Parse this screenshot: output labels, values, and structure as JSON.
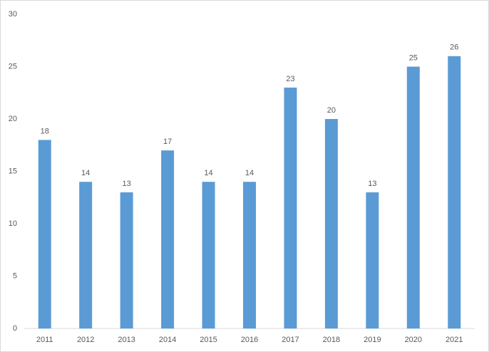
{
  "chart_data": {
    "type": "bar",
    "categories": [
      "2011",
      "2012",
      "2013",
      "2014",
      "2015",
      "2016",
      "2017",
      "2018",
      "2019",
      "2020",
      "2021"
    ],
    "values": [
      18,
      14,
      13,
      17,
      14,
      14,
      23,
      20,
      13,
      25,
      26
    ],
    "color": "#5b9bd5",
    "ylim": [
      0,
      30
    ],
    "yticks": [
      0,
      5,
      10,
      15,
      20,
      25,
      30
    ],
    "grid": false
  }
}
